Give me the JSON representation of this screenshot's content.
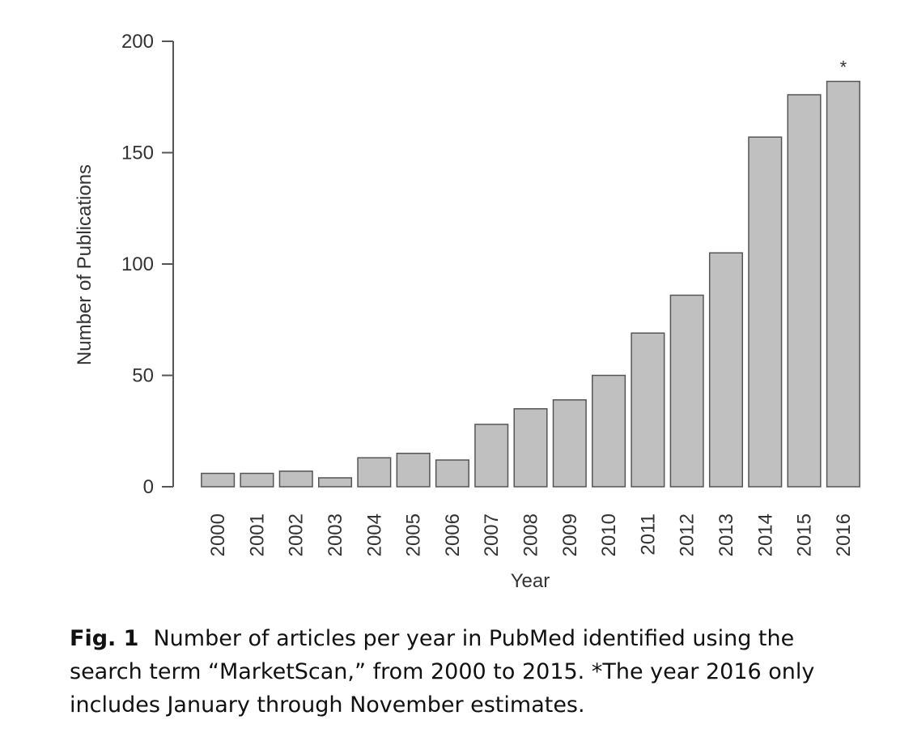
{
  "chart_data": {
    "type": "bar",
    "categories": [
      "2000",
      "2001",
      "2002",
      "2003",
      "2004",
      "2005",
      "2006",
      "2007",
      "2008",
      "2009",
      "2010",
      "2011",
      "2012",
      "2013",
      "2014",
      "2015",
      "2016"
    ],
    "values": [
      6,
      6,
      7,
      4,
      13,
      15,
      12,
      28,
      35,
      39,
      50,
      69,
      86,
      105,
      157,
      176,
      182
    ],
    "xlabel": "Year",
    "ylabel": "Number of Publications",
    "ylim": [
      0,
      200
    ],
    "yticks": [
      0,
      50,
      100,
      150,
      200
    ],
    "annotation": {
      "category": "2016",
      "text": "*"
    },
    "grid": false,
    "bar_color": "#c0c0c0",
    "bar_edge_color": "#555555"
  },
  "caption": {
    "label": "Fig. 1",
    "text": "Number of articles per year in PubMed identified using the search term “MarketScan,” from 2000 to 2015. *The year 2016 only includes January through November estimates."
  }
}
